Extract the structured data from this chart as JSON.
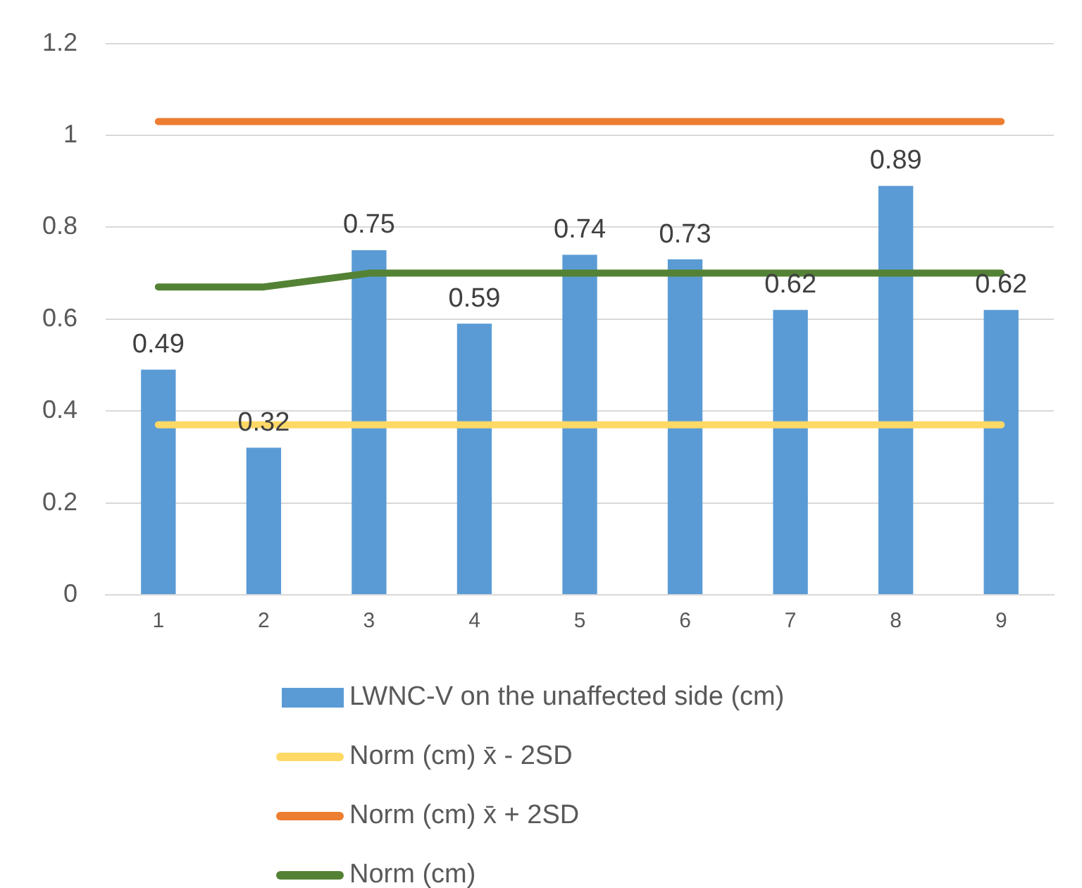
{
  "chart_data": {
    "type": "bar",
    "categories": [
      "1",
      "2",
      "3",
      "4",
      "5",
      "6",
      "7",
      "8",
      "9"
    ],
    "series": [
      {
        "name": "LWNC-V on the unaffected side (cm)",
        "color": "#5b9bd5",
        "values": [
          0.49,
          0.32,
          0.75,
          0.59,
          0.74,
          0.73,
          0.62,
          0.89,
          0.62
        ],
        "value_labels": [
          "0.49",
          "0.32",
          "0.75",
          "0.59",
          "0.74",
          "0.73",
          "0.62",
          "0.89",
          "0.62"
        ]
      },
      {
        "name": "Norm (cm) x̄ - 2SD",
        "type": "line",
        "color": "#ffd966",
        "values": [
          0.37,
          0.37,
          0.37,
          0.37,
          0.37,
          0.37,
          0.37,
          0.37,
          0.37
        ]
      },
      {
        "name": "Norm (cm) x̄ + 2SD",
        "type": "line",
        "color": "#ed7d31",
        "values": [
          1.03,
          1.03,
          1.03,
          1.03,
          1.03,
          1.03,
          1.03,
          1.03,
          1.03
        ]
      },
      {
        "name": "Norm (cm)",
        "type": "line",
        "color": "#548235",
        "values": [
          0.67,
          0.67,
          0.7,
          0.7,
          0.7,
          0.7,
          0.7,
          0.7,
          0.7
        ]
      }
    ],
    "ylim": [
      0,
      1.2
    ],
    "yticks": [
      0,
      0.2,
      0.4,
      0.6,
      0.8,
      1,
      1.2
    ],
    "grid": "y",
    "legend": "bottom",
    "marker": "none",
    "line_style": "solid"
  }
}
